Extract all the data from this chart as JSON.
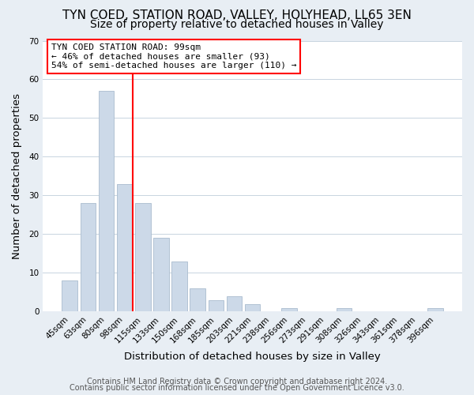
{
  "categories": [
    "45sqm",
    "63sqm",
    "80sqm",
    "98sqm",
    "115sqm",
    "133sqm",
    "150sqm",
    "168sqm",
    "185sqm",
    "203sqm",
    "221sqm",
    "238sqm",
    "256sqm",
    "273sqm",
    "291sqm",
    "308sqm",
    "326sqm",
    "343sqm",
    "361sqm",
    "378sqm",
    "396sqm"
  ],
  "values": [
    8,
    28,
    57,
    33,
    28,
    19,
    13,
    6,
    3,
    4,
    2,
    0,
    1,
    0,
    0,
    1,
    0,
    0,
    0,
    0,
    1
  ],
  "bar_color": "#ccd9e8",
  "bar_edge_color": "#aabcce",
  "title": "TYN COED, STATION ROAD, VALLEY, HOLYHEAD, LL65 3EN",
  "subtitle": "Size of property relative to detached houses in Valley",
  "xlabel": "Distribution of detached houses by size in Valley",
  "ylabel": "Number of detached properties",
  "ylim": [
    0,
    70
  ],
  "yticks": [
    0,
    10,
    20,
    30,
    40,
    50,
    60,
    70
  ],
  "red_line_index": 3,
  "annotation_line1": "TYN COED STATION ROAD: 99sqm",
  "annotation_line2": "← 46% of detached houses are smaller (93)",
  "annotation_line3": "54% of semi-detached houses are larger (110) →",
  "footer_line1": "Contains HM Land Registry data © Crown copyright and database right 2024.",
  "footer_line2": "Contains public sector information licensed under the Open Government Licence v3.0.",
  "background_color": "#e8eef4",
  "plot_bg_color": "#ffffff",
  "grid_color": "#c8d4e0",
  "title_fontsize": 11,
  "subtitle_fontsize": 10,
  "axis_label_fontsize": 9.5,
  "tick_label_fontsize": 7.5,
  "footer_fontsize": 7
}
